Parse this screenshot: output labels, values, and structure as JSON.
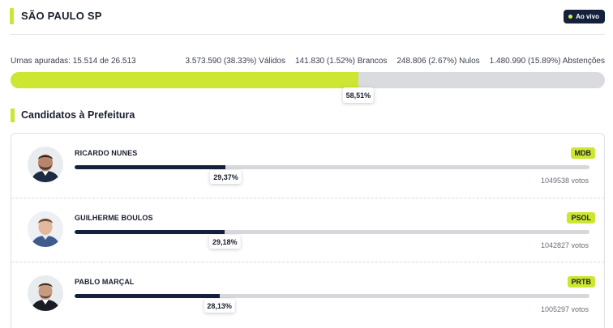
{
  "header": {
    "city": "SÃO PAULO  SP",
    "live_label": "Ao vivo",
    "live_dot_color": "#d7f03a"
  },
  "apuracao": {
    "urnas": "Urnas apuradas: 15.514 de 26.513",
    "validos": "3.573.590 (38.33%) Válidos",
    "brancos": "141.830 (1.52%) Brancos",
    "nulos": "248.806 (2.67%) Nulos",
    "abstencoes": "1.480.990 (15.89%) Abstenções",
    "percent_label": "58,51%",
    "percent_value": 58.51
  },
  "section": {
    "title": "Candidatos à Prefeitura"
  },
  "candidates": [
    {
      "name": "RICARDO NUNES",
      "party": "MDB",
      "percent_label": "29,37%",
      "percent_value": 29.37,
      "votes": "1049538 votos",
      "avatar": "candidate-photo"
    },
    {
      "name": "GUILHERME BOULOS",
      "party": "PSOL",
      "percent_label": "29,18%",
      "percent_value": 29.18,
      "votes": "1042827 votos",
      "avatar": "candidate-photo"
    },
    {
      "name": "PABLO MARÇAL",
      "party": "PRTB",
      "percent_label": "28,13%",
      "percent_value": 28.13,
      "votes": "1005297 votos",
      "avatar": "candidate-photo"
    }
  ],
  "colors": {
    "accent": "#cde631",
    "navy": "#14213d",
    "track": "#d7d8dc"
  }
}
